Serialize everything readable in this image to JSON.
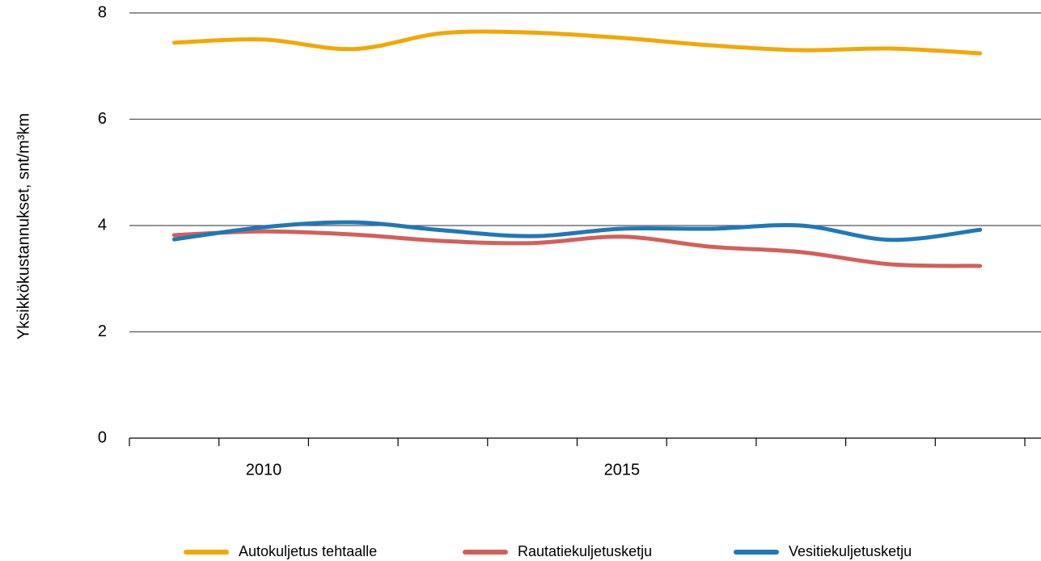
{
  "chart_data": {
    "type": "line",
    "y_label": "Yksikkökustannukset, snt/m³km",
    "categories": [
      null,
      "2010",
      null,
      null,
      null,
      "2015",
      null,
      null,
      null,
      null
    ],
    "series": [
      {
        "name": "Autokuljetus tehtaalle",
        "color": "#f2a800",
        "values": [
          7.44,
          7.5,
          7.32,
          7.62,
          7.63,
          7.53,
          7.39,
          7.3,
          7.33,
          7.24
        ]
      },
      {
        "name": "Rautatiekuljetusketju",
        "color": "#d45f5a",
        "values": [
          3.82,
          3.89,
          3.83,
          3.71,
          3.67,
          3.79,
          3.6,
          3.5,
          3.27,
          3.24
        ]
      },
      {
        "name": "Vesitiekuljetusketju",
        "color": "#1f78b8",
        "values": [
          3.74,
          3.97,
          4.06,
          3.91,
          3.8,
          3.94,
          3.94,
          4.0,
          3.73,
          3.92
        ]
      }
    ],
    "ylim": [
      0,
      8
    ],
    "yticks": [
      0,
      2,
      4,
      6,
      8
    ],
    "grid": true,
    "legend": "bottom"
  }
}
